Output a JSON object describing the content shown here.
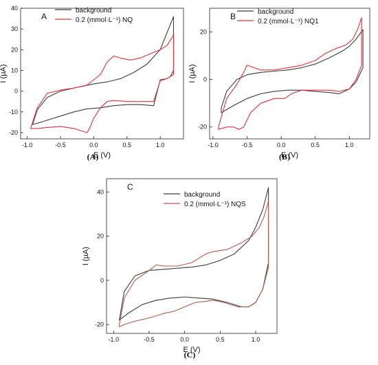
{
  "colors": {
    "background": "#3a3a3a",
    "sample_A": "#e0303a",
    "sample_B": "#e0303a",
    "sample_C": "#b05a4a"
  },
  "chart_data": [
    {
      "type": "line",
      "panel_label": "A",
      "caption": "(A)",
      "xlabel": "E (V)",
      "ylabel": "I (µA)",
      "xlim": [
        -1.1,
        1.35
      ],
      "ylim": [
        -23,
        40
      ],
      "xticks": [
        -1.0,
        -0.5,
        0.0,
        0.5,
        1.0
      ],
      "xtick_labels": [
        "-1.0",
        "-0.5",
        "0.0",
        "0.5",
        "1.0"
      ],
      "yticks": [
        -20,
        -10,
        0,
        10,
        20,
        30,
        40
      ],
      "ytick_labels": [
        "-20",
        "-10",
        "0",
        "10",
        "20",
        "30",
        "40"
      ],
      "legend_position": "top-left",
      "series": [
        {
          "name": "background",
          "color": "#3a3a3a",
          "x": [
            -0.92,
            -0.85,
            -0.7,
            -0.5,
            -0.3,
            0.0,
            0.2,
            0.4,
            0.6,
            0.8,
            1.0,
            1.1,
            1.2,
            1.2,
            1.15,
            1.1,
            1.0,
            0.9,
            0.7,
            0.5,
            0.3,
            0.1,
            -0.1,
            -0.3,
            -0.5,
            -0.7,
            -0.85,
            -0.92
          ],
          "y": [
            -16,
            -9,
            -3,
            0,
            1.5,
            3.5,
            4.5,
            6,
            9,
            13,
            20,
            28,
            36,
            10,
            7,
            6,
            5.5,
            -7,
            -6.5,
            -6.5,
            -7,
            -8,
            -8.5,
            -10,
            -12,
            -14,
            -15.5,
            -16
          ]
        },
        {
          "name": "0.2 (mmol·L⁻¹) NQ",
          "color": "#e0303a",
          "x": [
            -0.95,
            -0.85,
            -0.7,
            -0.5,
            -0.3,
            -0.1,
            0.1,
            0.2,
            0.3,
            0.4,
            0.55,
            0.7,
            0.85,
            1.0,
            1.1,
            1.2,
            1.2,
            1.1,
            1.0,
            0.9,
            0.7,
            0.5,
            0.3,
            0.2,
            0.1,
            0.0,
            -0.05,
            -0.1,
            -0.3,
            -0.5,
            -0.7,
            -0.85,
            -0.95
          ],
          "y": [
            -18,
            -8,
            -1,
            0.5,
            1.5,
            3,
            8,
            14,
            17,
            16,
            15,
            16,
            18,
            20,
            22,
            27,
            8,
            6,
            5,
            -5,
            -5,
            -5,
            -4.5,
            -5,
            -8,
            -13,
            -17,
            -20,
            -18,
            -17,
            -17.5,
            -18,
            -18
          ]
        }
      ]
    },
    {
      "type": "line",
      "panel_label": "B",
      "caption": "(B)",
      "xlabel": "E (V)",
      "ylabel": "I (µA)",
      "xlim": [
        -1.05,
        1.3
      ],
      "ylim": [
        -25,
        30
      ],
      "xticks": [
        -1.0,
        -0.5,
        0.0,
        0.5,
        1.0
      ],
      "xtick_labels": [
        "-1.0",
        "-0.5",
        "0.0",
        "0.5",
        "1.0"
      ],
      "yticks": [
        -20,
        0,
        20
      ],
      "ytick_labels": [
        "-20",
        "0",
        "20"
      ],
      "legend_position": "top-left",
      "series": [
        {
          "name": "background",
          "color": "#3a3a3a",
          "x": [
            -0.88,
            -0.8,
            -0.65,
            -0.5,
            -0.3,
            -0.1,
            0.1,
            0.3,
            0.5,
            0.7,
            0.9,
            1.0,
            1.1,
            1.2,
            1.2,
            1.1,
            1.0,
            0.85,
            0.7,
            0.5,
            0.3,
            0.1,
            -0.1,
            -0.3,
            -0.5,
            -0.7,
            -0.88
          ],
          "y": [
            -12,
            -5,
            0,
            2,
            3,
            3.5,
            4,
            5,
            6.5,
            9,
            12,
            14,
            17,
            21,
            5,
            -1,
            -4,
            -6,
            -5.5,
            -5,
            -4.5,
            -4.5,
            -5,
            -6,
            -8,
            -11,
            -14
          ]
        },
        {
          "name": "0.2 (mmol·L⁻¹) NQ1",
          "color": "#e0303a",
          "x": [
            -0.92,
            -0.8,
            -0.65,
            -0.55,
            -0.5,
            -0.45,
            -0.3,
            -0.1,
            0.1,
            0.3,
            0.5,
            0.65,
            0.8,
            0.95,
            1.05,
            1.12,
            1.18,
            1.18,
            1.1,
            1.0,
            0.85,
            0.7,
            0.5,
            0.3,
            0.15,
            0.05,
            -0.1,
            -0.3,
            -0.45,
            -0.55,
            -0.62,
            -0.7,
            -0.8,
            -0.92
          ],
          "y": [
            -20,
            -8,
            -2,
            3,
            6,
            5.5,
            4,
            4,
            5,
            6,
            8,
            11,
            13,
            14.5,
            17,
            21,
            26,
            6,
            0,
            -4,
            -5,
            -4.5,
            -4.5,
            -4.5,
            -6,
            -8,
            -8,
            -10,
            -14,
            -20,
            -21,
            -20,
            -20,
            -21
          ]
        }
      ]
    },
    {
      "type": "line",
      "panel_label": "C",
      "caption": "(C)",
      "xlabel": "E (V)",
      "ylabel": "I (µA)",
      "xlim": [
        -1.1,
        1.3
      ],
      "ylim": [
        -24,
        46
      ],
      "xticks": [
        -1.0,
        -0.5,
        0.0,
        0.5,
        1.0
      ],
      "xtick_labels": [
        "-1.0",
        "-0.5",
        "0.0",
        "0.5",
        "1.0"
      ],
      "yticks": [
        -20,
        0,
        20,
        40
      ],
      "ytick_labels": [
        "-20",
        "0",
        "20",
        "40"
      ],
      "legend_position": "top-left",
      "series": [
        {
          "name": "background",
          "color": "#3a3a3a",
          "x": [
            -0.92,
            -0.85,
            -0.7,
            -0.5,
            -0.3,
            -0.1,
            0.1,
            0.3,
            0.5,
            0.7,
            0.9,
            1.0,
            1.1,
            1.18,
            1.18,
            1.1,
            1.0,
            0.9,
            0.8,
            0.6,
            0.4,
            0.2,
            0.0,
            -0.2,
            -0.4,
            -0.6,
            -0.8,
            -0.92
          ],
          "y": [
            -18,
            -5,
            2,
            4.5,
            5,
            5.5,
            6,
            7,
            9,
            12,
            18,
            24,
            32,
            42,
            8,
            -4,
            -10,
            -12,
            -12,
            -10,
            -8.5,
            -8,
            -7.5,
            -8,
            -9,
            -11,
            -15,
            -18
          ]
        },
        {
          "name": "0.2 (mmol·L⁻¹) NQS",
          "color": "#b05a4a",
          "x": [
            -0.92,
            -0.85,
            -0.7,
            -0.5,
            -0.4,
            -0.3,
            -0.1,
            0.1,
            0.3,
            0.4,
            0.6,
            0.8,
            0.95,
            1.05,
            1.12,
            1.18,
            1.18,
            1.1,
            1.0,
            0.9,
            0.75,
            0.55,
            0.4,
            0.3,
            0.15,
            0.0,
            -0.15,
            -0.3,
            -0.5,
            -0.7,
            -0.85,
            -0.92
          ],
          "y": [
            -20,
            -8,
            0,
            4.5,
            7,
            6.5,
            6.5,
            8,
            12,
            13,
            14,
            17,
            20,
            24,
            29,
            36,
            6,
            -4,
            -10,
            -12,
            -12,
            -10,
            -9,
            -9.5,
            -10,
            -12,
            -14,
            -15,
            -17,
            -18.5,
            -20,
            -21
          ]
        }
      ]
    }
  ]
}
